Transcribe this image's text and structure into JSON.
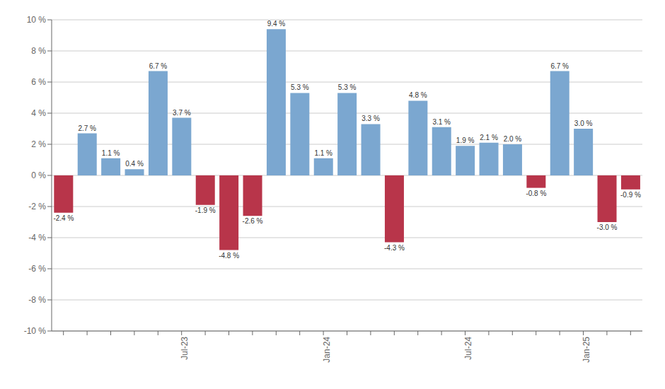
{
  "chart_data": {
    "type": "bar",
    "categories": [
      null,
      null,
      null,
      null,
      null,
      "Jul-23",
      null,
      null,
      null,
      null,
      null,
      "Jan-24",
      null,
      null,
      null,
      null,
      null,
      "Jul-24",
      null,
      null,
      null,
      null,
      "Jan-25",
      null,
      null
    ],
    "values": [
      -2.4,
      2.7,
      1.1,
      0.4,
      6.7,
      3.7,
      -1.9,
      -4.8,
      -2.6,
      9.4,
      5.3,
      1.1,
      5.3,
      3.3,
      -4.3,
      4.8,
      3.1,
      1.9,
      2.1,
      2.0,
      -0.8,
      6.7,
      3.0,
      -3.0,
      -0.9
    ],
    "value_labels": [
      "-2.4 %",
      "2.7 %",
      "1.1 %",
      "0.4 %",
      "6.7 %",
      "3.7 %",
      "-1.9 %",
      "-4.8 %",
      "-2.6 %",
      "9.4 %",
      "5.3 %",
      "1.1 %",
      "5.3 %",
      "3.3 %",
      "-4.3 %",
      "4.8 %",
      "3.1 %",
      "1.9 %",
      "2.1 %",
      "2.0 %",
      "-0.8 %",
      "6.7 %",
      "3.0 %",
      "-3.0 %",
      "-0.9 %"
    ],
    "colors": [
      "#B8354A",
      "#7BA7D0",
      "#7BA7D0",
      "#7BA7D0",
      "#7BA7D0",
      "#7BA7D0",
      "#B8354A",
      "#B8354A",
      "#B8354A",
      "#7BA7D0",
      "#7BA7D0",
      "#7BA7D0",
      "#7BA7D0",
      "#7BA7D0",
      "#B8354A",
      "#7BA7D0",
      "#7BA7D0",
      "#7BA7D0",
      "#7BA7D0",
      "#7BA7D0",
      "#B8354A",
      "#7BA7D0",
      "#7BA7D0",
      "#B8354A",
      "#B8354A"
    ],
    "ylim": [
      -10,
      10
    ],
    "yticks": [
      {
        "value": -10,
        "label": "-10 %"
      },
      {
        "value": -8,
        "label": "-8 %"
      },
      {
        "value": -6,
        "label": "-6 %"
      },
      {
        "value": -4,
        "label": "-4 %"
      },
      {
        "value": -2,
        "label": "-2 %"
      },
      {
        "value": 0,
        "label": "0 %"
      },
      {
        "value": 2,
        "label": "2 %"
      },
      {
        "value": 4,
        "label": "4 %"
      },
      {
        "value": 6,
        "label": "6 %"
      },
      {
        "value": 8,
        "label": "8 %"
      },
      {
        "value": 10,
        "label": "10 %"
      }
    ],
    "grid": true,
    "data_labels": true
  }
}
